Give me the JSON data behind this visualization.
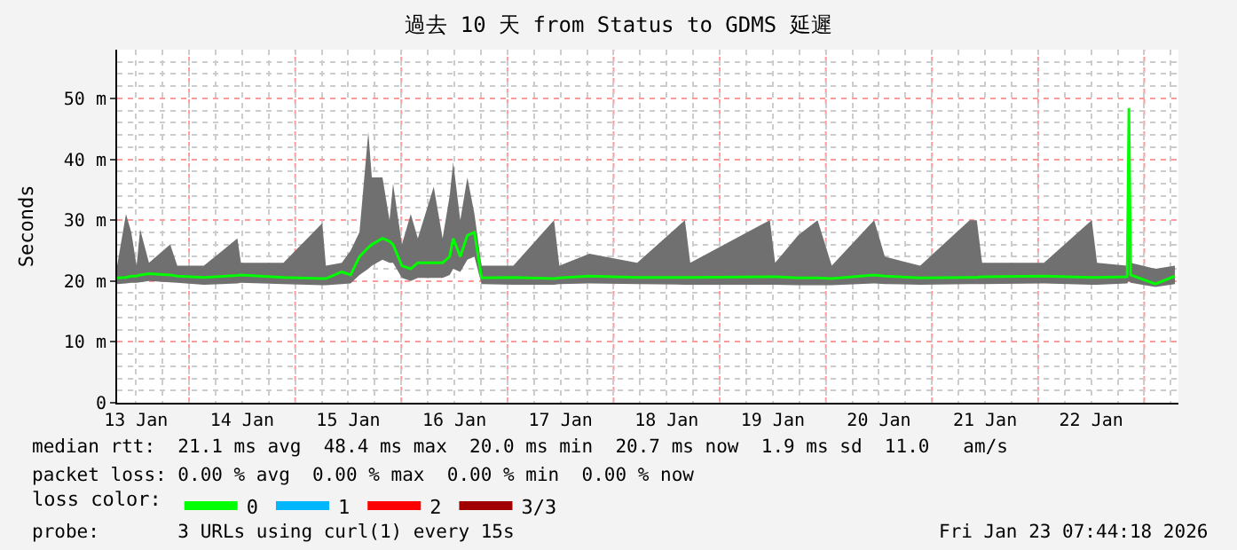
{
  "chart_data": {
    "type": "line",
    "title": "過去 10 天 from Status to GDMS 延遲",
    "ylabel": "Seconds",
    "legend_title": "loss color:",
    "xlim": [
      "2026-01-13T07:44",
      "2026-01-23T07:44"
    ],
    "xticks": [
      {
        "value": "2026-01-13T12:00",
        "label": "13 Jan"
      },
      {
        "value": "2026-01-14T12:00",
        "label": "14 Jan"
      },
      {
        "value": "2026-01-15T12:00",
        "label": "15 Jan"
      },
      {
        "value": "2026-01-16T12:00",
        "label": "16 Jan"
      },
      {
        "value": "2026-01-17T12:00",
        "label": "17 Jan"
      },
      {
        "value": "2026-01-18T12:00",
        "label": "18 Jan"
      },
      {
        "value": "2026-01-19T12:00",
        "label": "19 Jan"
      },
      {
        "value": "2026-01-20T12:00",
        "label": "20 Jan"
      },
      {
        "value": "2026-01-21T12:00",
        "label": "21 Jan"
      },
      {
        "value": "2026-01-22T12:00",
        "label": "22 Jan"
      }
    ],
    "ylim": [
      0,
      58
    ],
    "yticks": [
      0,
      {
        "value": 10,
        "label": "10 m"
      },
      {
        "value": 20,
        "label": "20 m"
      },
      {
        "value": 30,
        "label": "30 m"
      },
      {
        "value": 40,
        "label": "40 m"
      },
      {
        "value": 50,
        "label": "50 m"
      }
    ],
    "grid": true,
    "legend": "bottom",
    "x": [
      "2026-01-13T07:44",
      "2026-01-13T09:44",
      "2026-01-13T10:56",
      "2026-01-13T12:08",
      "2026-01-13T12:56",
      "2026-01-13T14:56",
      "2026-01-13T19:44",
      "2026-01-13T21:20",
      "2026-01-14T03:20",
      "2026-01-14T10:56",
      "2026-01-14T11:44",
      "2026-01-14T21:20",
      "2026-01-15T06:08",
      "2026-01-15T06:56",
      "2026-01-15T10:32",
      "2026-01-15T12:32",
      "2026-01-15T14:32",
      "2026-01-15T16:32",
      "2026-01-15T17:20",
      "2026-01-15T19:44",
      "2026-01-15T21:20",
      "2026-01-15T22:08",
      "2026-01-16T00:08",
      "2026-01-16T02:08",
      "2026-01-16T03:44",
      "2026-01-16T07:20",
      "2026-01-16T09:20",
      "2026-01-16T10:56",
      "2026-01-16T11:44",
      "2026-01-16T13:20",
      "2026-01-16T14:56",
      "2026-01-16T16:32",
      "2026-01-16T18:08",
      "2026-01-17T01:20",
      "2026-01-17T10:32",
      "2026-01-17T11:44",
      "2026-01-17T18:32",
      "2026-01-18T05:20",
      "2026-01-18T16:08",
      "2026-01-18T17:20",
      "2026-01-19T11:20",
      "2026-01-19T12:32",
      "2026-01-19T17:44",
      "2026-01-19T22:08",
      "2026-01-20T01:20",
      "2026-01-20T10:56",
      "2026-01-20T13:20",
      "2026-01-20T21:20",
      "2026-01-21T08:32",
      "2026-01-21T10:08",
      "2026-01-21T11:20",
      "2026-01-22T01:20",
      "2026-01-22T12:08",
      "2026-01-22T13:20",
      "2026-01-22T20:08",
      "2026-01-22T20:32",
      "2026-01-22T20:56",
      "2026-01-23T02:32",
      "2026-01-23T06:56"
    ],
    "series": [
      {
        "name": "0",
        "color": "#00ff00",
        "values": [
          20.5,
          20.6,
          20.8,
          20.8,
          21,
          21.2,
          21,
          20.8,
          20.6,
          20.9,
          21,
          20.6,
          20.4,
          20.4,
          21.5,
          21,
          24,
          25.5,
          26,
          27,
          26.5,
          26,
          22.5,
          22,
          23,
          23,
          23,
          24,
          27,
          24,
          27.5,
          28,
          20.5,
          20.6,
          20.4,
          20.5,
          20.8,
          20.6,
          20.6,
          20.6,
          20.7,
          20.7,
          20.5,
          20.5,
          20.4,
          21,
          20.8,
          20.5,
          20.6,
          20.6,
          20.7,
          20.8,
          20.6,
          20.6,
          20.7,
          48.4,
          21,
          19.5,
          20.8
        ],
        "lower": [
          19.5,
          19.6,
          19.7,
          19.7,
          19.8,
          20,
          19.8,
          19.7,
          19.4,
          19.6,
          19.7,
          19.5,
          19.3,
          19.3,
          19.5,
          19.6,
          21,
          22,
          22.5,
          23.5,
          23,
          23,
          20.5,
          20,
          20.5,
          20.5,
          20.5,
          21,
          22,
          21.5,
          23.5,
          24,
          19.5,
          19.4,
          19.4,
          19.5,
          19.6,
          19.5,
          19.4,
          19.4,
          19.4,
          19.4,
          19.3,
          19.3,
          19.3,
          19.6,
          19.5,
          19.4,
          19.5,
          19.5,
          19.5,
          19.6,
          19.4,
          19.4,
          19.6,
          20,
          19.7,
          19,
          19.5
        ],
        "upper": [
          22.5,
          31,
          28,
          22.5,
          28.5,
          23,
          26,
          22.5,
          22.5,
          27,
          23,
          23,
          29.5,
          22.5,
          23,
          25,
          28,
          44.5,
          37,
          37,
          30,
          36,
          26,
          31,
          27,
          35.5,
          27,
          34,
          39.5,
          30,
          37,
          31,
          22.5,
          22.5,
          30,
          22.5,
          24.5,
          23,
          30,
          23,
          30,
          23,
          27.5,
          30,
          22.5,
          30,
          24,
          22.5,
          30,
          30,
          23,
          23,
          30,
          23,
          22.5,
          49,
          23,
          22,
          22.5
        ]
      },
      {
        "name": "1",
        "color": "#00b7ff",
        "values": [
          null,
          null,
          null,
          null,
          null,
          null,
          null,
          null,
          null,
          null,
          null,
          null,
          null,
          null,
          null,
          null,
          null,
          null,
          null,
          null,
          null,
          null,
          null,
          null,
          null,
          null,
          null,
          null,
          null,
          null,
          null,
          null,
          null,
          null,
          null,
          null,
          null,
          null,
          null,
          null,
          null,
          null,
          null,
          null,
          null,
          null,
          null,
          null,
          null,
          null,
          null,
          null,
          null,
          null,
          null,
          null,
          null,
          null,
          null
        ]
      },
      {
        "name": "2",
        "color": "#ff0000",
        "values": [
          null,
          null,
          null,
          null,
          null,
          null,
          null,
          null,
          null,
          null,
          null,
          null,
          null,
          null,
          null,
          null,
          null,
          null,
          null,
          null,
          null,
          null,
          null,
          null,
          null,
          null,
          null,
          null,
          null,
          null,
          null,
          null,
          null,
          null,
          null,
          null,
          null,
          null,
          null,
          null,
          null,
          null,
          null,
          null,
          null,
          null,
          null,
          null,
          null,
          null,
          null,
          null,
          null,
          null,
          null,
          null,
          null,
          null,
          null
        ]
      },
      {
        "name": "3/3",
        "color": "#a10000",
        "values": [
          null,
          null,
          null,
          null,
          null,
          null,
          null,
          null,
          null,
          null,
          null,
          null,
          null,
          null,
          null,
          null,
          null,
          null,
          null,
          null,
          null,
          null,
          null,
          null,
          null,
          null,
          null,
          null,
          null,
          null,
          null,
          null,
          null,
          null,
          null,
          null,
          null,
          null,
          null,
          null,
          null,
          null,
          null,
          null,
          null,
          null,
          null,
          null,
          null,
          null,
          null,
          null,
          null,
          null,
          null,
          null,
          null,
          null,
          null
        ]
      }
    ],
    "annotations": [
      "median rtt:  21.1 ms avg  48.4 ms max  20.0 ms min  20.7 ms now  1.9 ms sd  11.0   am/s",
      "packet loss: 0.00 % avg  0.00 % max  0.00 % min  0.00 % now",
      "probe:       3 URLs using curl(1) every 15s",
      "Fri Jan 23 07:44:18 2026"
    ]
  }
}
